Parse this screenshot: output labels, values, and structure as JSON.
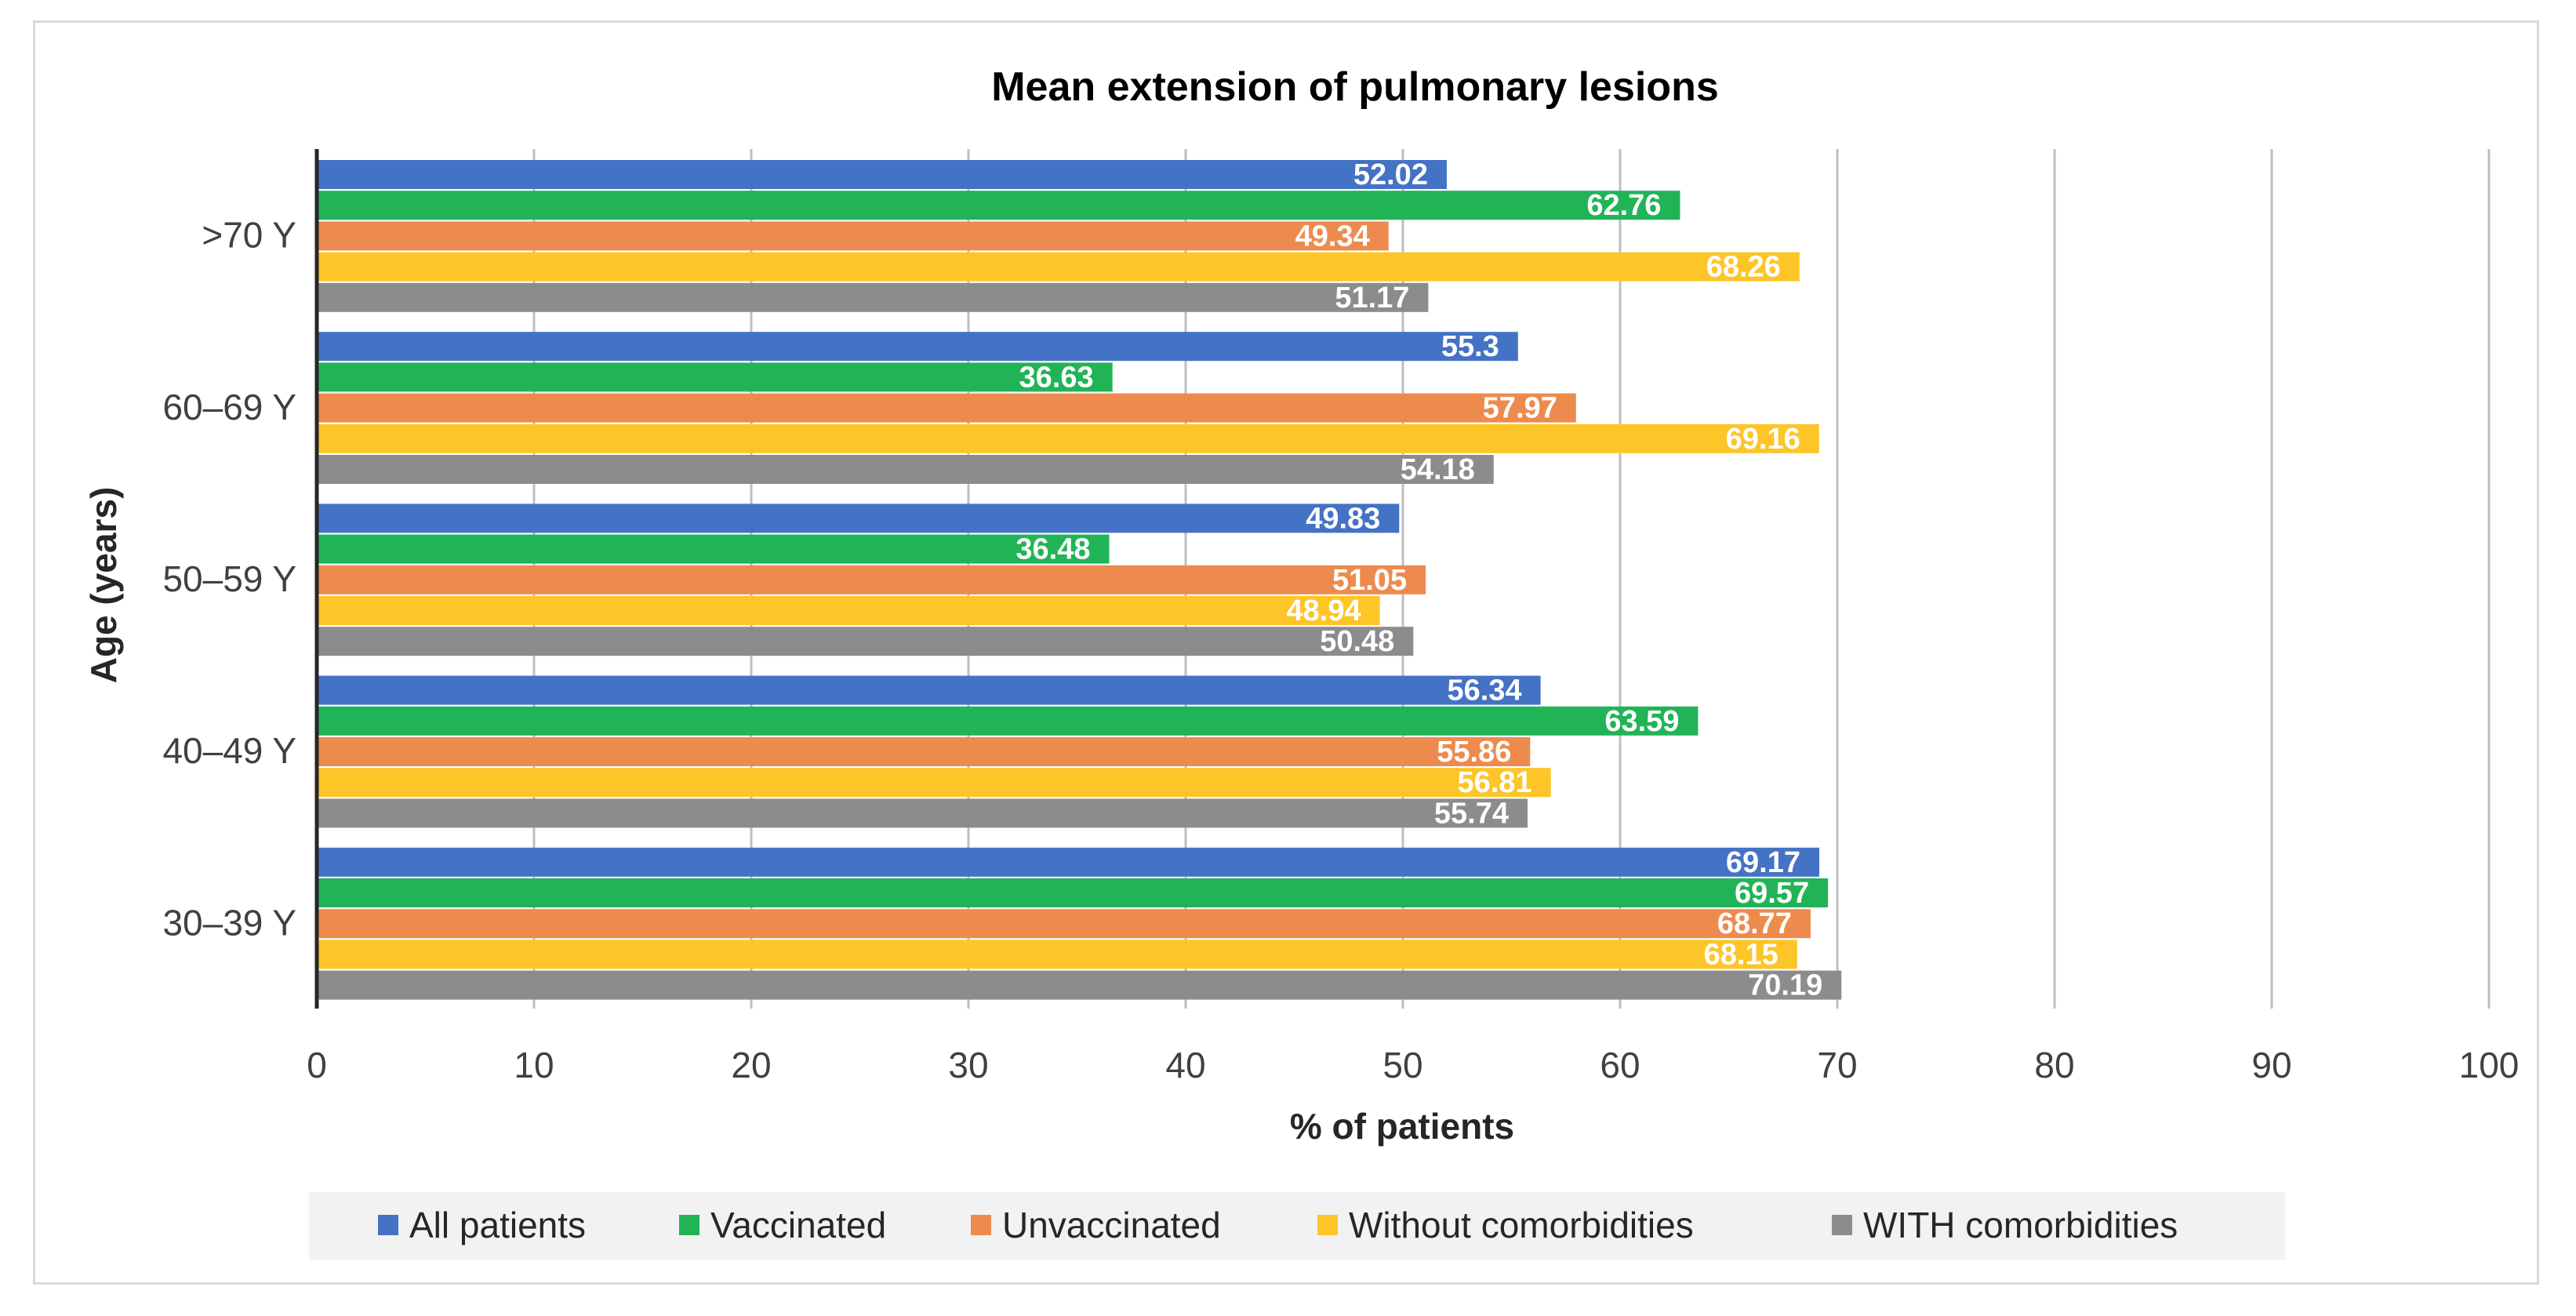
{
  "chart_data": {
    "type": "bar",
    "orientation": "horizontal",
    "title": "Mean extension of pulmonary lesions",
    "xlabel": "% of patients",
    "ylabel": "Age (years)",
    "xlim": [
      0,
      100
    ],
    "xticks": [
      0,
      10,
      20,
      30,
      40,
      50,
      60,
      70,
      80,
      90,
      100
    ],
    "grid": "vertical",
    "legend_position": "bottom",
    "categories": [
      ">70 Y",
      "60–69 Y",
      "50–59 Y",
      "40–49 Y",
      "30–39 Y"
    ],
    "series": [
      {
        "name": "All patients",
        "color": "#4472c4",
        "values": [
          52.02,
          55.3,
          49.83,
          56.34,
          69.17
        ]
      },
      {
        "name": "Vaccinated",
        "color": "#21b457",
        "values": [
          62.76,
          36.63,
          36.48,
          63.59,
          69.57
        ]
      },
      {
        "name": "Unvaccinated",
        "color": "#ed8b4e",
        "values": [
          49.34,
          57.97,
          51.05,
          55.86,
          68.77
        ]
      },
      {
        "name": "Without comorbidities",
        "color": "#fdc528",
        "values": [
          68.26,
          69.16,
          48.94,
          56.81,
          68.15
        ]
      },
      {
        "name": "WITH comorbidities",
        "color": "#8c8c8c",
        "values": [
          51.17,
          54.18,
          50.48,
          55.74,
          70.19
        ]
      }
    ]
  }
}
